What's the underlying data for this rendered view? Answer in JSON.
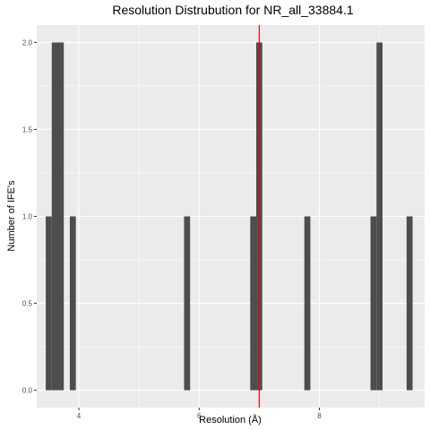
{
  "chart_data": {
    "type": "bar",
    "title": "Resolution Distrubution for NR_all_33884.1",
    "xlabel": "Resolution (Å)",
    "ylabel": "Number of IFE's",
    "xlim": [
      3.3,
      9.75
    ],
    "ylim": [
      -0.1,
      2.1
    ],
    "x_ticks": [
      4,
      6,
      8
    ],
    "x_tick_labels": [
      "4",
      "6",
      "8"
    ],
    "y_ticks": [
      0.0,
      0.5,
      1.0,
      1.5,
      2.0
    ],
    "y_tick_labels": [
      "0.0",
      "0.5",
      "1.0",
      "1.5",
      "2.0"
    ],
    "bin_width": 0.1,
    "bins": [
      {
        "x": 3.5,
        "count": 1
      },
      {
        "x": 3.6,
        "count": 2
      },
      {
        "x": 3.7,
        "count": 2
      },
      {
        "x": 3.9,
        "count": 1
      },
      {
        "x": 5.8,
        "count": 1
      },
      {
        "x": 6.9,
        "count": 1
      },
      {
        "x": 7.0,
        "count": 2
      },
      {
        "x": 7.8,
        "count": 1
      },
      {
        "x": 8.9,
        "count": 1
      },
      {
        "x": 9.0,
        "count": 2
      },
      {
        "x": 9.5,
        "count": 1
      }
    ],
    "reference_line": {
      "x": 7.0,
      "color": "#ff0000"
    },
    "bar_color": "#4d4d4d",
    "panel_background": "#ebebeb",
    "grid": true,
    "grid_color": "#ffffff"
  }
}
